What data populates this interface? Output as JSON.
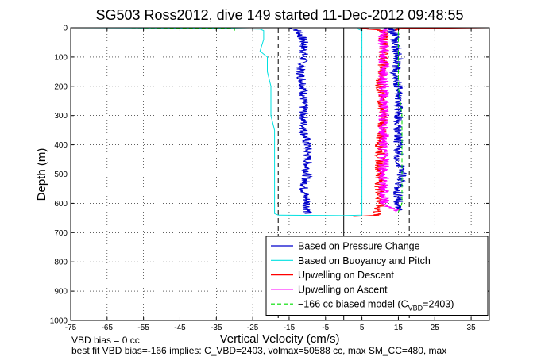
{
  "chart_data": {
    "type": "line",
    "title": "SG503 Ross2012, dive 149 started 11-Dec-2012 09:48:55",
    "xlabel": "Vertical Velocity (cm/s)",
    "ylabel": "Depth (m)",
    "xlim": [
      -75,
      40
    ],
    "ylim": [
      1000,
      0
    ],
    "y_reversed": true,
    "grid": true,
    "grid_style": "dotted",
    "x_ticks": [
      -75,
      -65,
      -55,
      -45,
      -35,
      -25,
      -15,
      -5,
      5,
      15,
      25,
      35
    ],
    "x_tick_labels": [
      "-75",
      "-65",
      "-55",
      "-45",
      "-35",
      "-25",
      "-15",
      "-5",
      "5",
      "15",
      "25",
      "35"
    ],
    "y_ticks": [
      0,
      100,
      200,
      300,
      400,
      500,
      600,
      700,
      800,
      900,
      1000
    ],
    "y_tick_labels": [
      "0",
      "100",
      "200",
      "300",
      "400",
      "500",
      "600",
      "700",
      "800",
      "900",
      "1000"
    ],
    "vertical_lines": [
      {
        "x": -18,
        "color": "#000000",
        "dashed": true
      },
      {
        "x": 0,
        "color": "#000000",
        "dashed": false
      },
      {
        "x": 18,
        "color": "#000000",
        "dashed": true
      }
    ],
    "legend_position": "bottom-right",
    "series": [
      {
        "name": "Based on Pressure Change",
        "color": "#0000cc",
        "noise": 1.3,
        "descent": [
          [
            0,
            -15
          ],
          [
            5,
            -13
          ],
          [
            20,
            -12
          ],
          [
            50,
            -11
          ],
          [
            100,
            -11
          ],
          [
            150,
            -12
          ],
          [
            200,
            -11
          ],
          [
            250,
            -11
          ],
          [
            300,
            -11
          ],
          [
            350,
            -11
          ],
          [
            400,
            -10
          ],
          [
            450,
            -10
          ],
          [
            500,
            -10
          ],
          [
            550,
            -11
          ],
          [
            600,
            -10
          ],
          [
            635,
            -10
          ]
        ],
        "ascent": [
          [
            625,
            15
          ],
          [
            600,
            15
          ],
          [
            550,
            15
          ],
          [
            500,
            16
          ],
          [
            450,
            15
          ],
          [
            400,
            15
          ],
          [
            350,
            15
          ],
          [
            300,
            15
          ],
          [
            250,
            15
          ],
          [
            200,
            15
          ],
          [
            150,
            14
          ],
          [
            100,
            15
          ],
          [
            50,
            14
          ],
          [
            20,
            14
          ],
          [
            5,
            13
          ],
          [
            0,
            12
          ]
        ]
      },
      {
        "name": "Based on Buoyancy and Pitch",
        "color": "#00e0e0",
        "noise": 0,
        "descent": [
          [
            0,
            -75
          ],
          [
            2,
            -35
          ],
          [
            5,
            -23
          ],
          [
            10,
            -22
          ],
          [
            20,
            -22
          ],
          [
            40,
            -22
          ],
          [
            80,
            -23
          ],
          [
            100,
            -21
          ],
          [
            150,
            -21
          ],
          [
            200,
            -20
          ],
          [
            250,
            -20
          ],
          [
            300,
            -20
          ],
          [
            350,
            -19
          ],
          [
            400,
            -19
          ],
          [
            450,
            -19
          ],
          [
            500,
            -19
          ],
          [
            550,
            -19
          ],
          [
            600,
            -19
          ],
          [
            635,
            -19
          ],
          [
            640,
            -18
          ]
        ],
        "ascent": [
          [
            640,
            -18
          ],
          [
            642,
            0
          ],
          [
            640,
            5
          ],
          [
            600,
            5
          ],
          [
            500,
            5
          ],
          [
            400,
            5
          ],
          [
            300,
            5
          ],
          [
            200,
            5
          ],
          [
            100,
            5
          ],
          [
            50,
            5
          ],
          [
            10,
            5
          ],
          [
            5,
            4
          ],
          [
            0,
            4
          ]
        ]
      },
      {
        "name": "Upwelling on Descent",
        "color": "#ff0000",
        "noise": 1.4,
        "descent": [
          [
            0,
            5
          ],
          [
            10,
            11
          ],
          [
            100,
            11
          ],
          [
            200,
            10
          ],
          [
            300,
            11
          ],
          [
            400,
            10
          ],
          [
            500,
            10
          ],
          [
            600,
            10
          ],
          [
            640,
            9
          ],
          [
            645,
            3
          ]
        ],
        "ascent": [
          [
            0,
            40
          ],
          [
            3,
            15
          ],
          [
            10,
            15
          ]
        ]
      },
      {
        "name": "Upwelling on Ascent",
        "color": "#ff00ff",
        "noise": 1.5,
        "descent": [],
        "ascent": [
          [
            630,
            15
          ],
          [
            600,
            11
          ],
          [
            500,
            11
          ],
          [
            400,
            11
          ],
          [
            300,
            11
          ],
          [
            200,
            11
          ],
          [
            100,
            11
          ],
          [
            0,
            11
          ]
        ]
      },
      {
        "name": "-166 cc biased model (C_VBD=2403)",
        "legend_parts": [
          "−166 cc biased model (C",
          "VBD",
          "=2403)"
        ],
        "color": "#00dd00",
        "dashed": true,
        "noise": 0,
        "descent": [
          [
            0,
            -60
          ],
          [
            3,
            -30
          ],
          [
            10,
            -30
          ]
        ],
        "ascent": [
          [
            630,
            15
          ],
          [
            600,
            16
          ],
          [
            500,
            16
          ],
          [
            400,
            16
          ],
          [
            300,
            16
          ],
          [
            200,
            15
          ],
          [
            100,
            15
          ],
          [
            10,
            15
          ],
          [
            0,
            15
          ]
        ]
      }
    ]
  },
  "footer": {
    "line1": "VBD bias = 0 cc",
    "line2": "best fit VBD bias=-166 implies: C_VBD=2403, volmax=50588 cc, max SM_CC=480, max"
  }
}
